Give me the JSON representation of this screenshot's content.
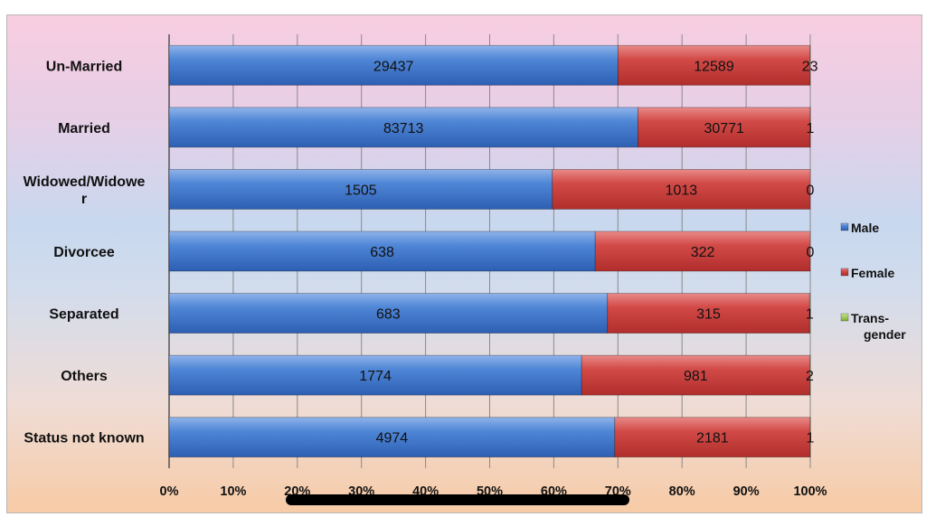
{
  "chart_data": {
    "type": "bar",
    "orientation": "horizontal",
    "stacked": "percent",
    "categories": [
      "Un-Married",
      "Married",
      "Widowed/Widower",
      "Divorcee",
      "Separated",
      "Others",
      "Status not known"
    ],
    "category_display_lines": [
      [
        "Un-Married"
      ],
      [
        "Married"
      ],
      [
        "Widowed/Widowe",
        "r"
      ],
      [
        "Divorcee"
      ],
      [
        "Separated"
      ],
      [
        "Others"
      ],
      [
        "Status not known"
      ]
    ],
    "series": [
      {
        "name": "Male",
        "color": "#3a6fc4",
        "values": [
          29437,
          83713,
          1505,
          638,
          683,
          1774,
          4974
        ]
      },
      {
        "name": "Female",
        "color": "#c43a38",
        "values": [
          12589,
          30771,
          1013,
          322,
          315,
          981,
          2181
        ]
      },
      {
        "name": "Trans-gender",
        "legend_lines": [
          "Trans-",
          "gender"
        ],
        "color": "#8fc23a",
        "values": [
          23,
          1,
          0,
          0,
          1,
          2,
          1
        ]
      }
    ],
    "x_ticks": [
      "0%",
      "10%",
      "20%",
      "30%",
      "40%",
      "50%",
      "60%",
      "70%",
      "80%",
      "90%",
      "100%"
    ],
    "xlim": [
      0,
      100
    ],
    "grid": true,
    "legend": "right"
  }
}
